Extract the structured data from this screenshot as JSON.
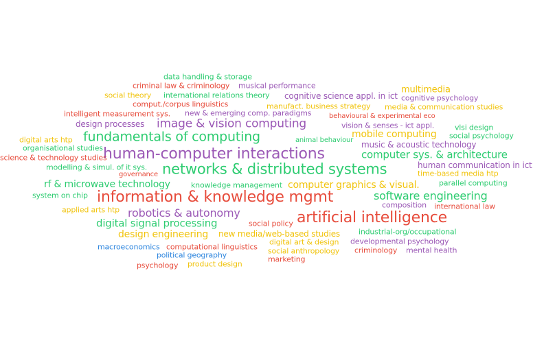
{
  "colors": {
    "green": "#2ecc71",
    "red": "#e74c3c",
    "purple": "#9b59b6",
    "yellow": "#f1c40f",
    "blue": "#2e86de"
  },
  "words": [
    {
      "text": "data handling & storage"
    },
    {
      "text": "criminal law & criminology"
    },
    {
      "text": "musical performance"
    },
    {
      "text": "social theory"
    },
    {
      "text": "international relations theory"
    },
    {
      "text": "cognitive science appl. in ict"
    },
    {
      "text": "multimedia"
    },
    {
      "text": "cognitive psychology"
    },
    {
      "text": "comput./corpus linguistics"
    },
    {
      "text": "manufact. business strategy"
    },
    {
      "text": "media & communication studies"
    },
    {
      "text": "intelligent measurement sys."
    },
    {
      "text": "new & emerging comp. paradigms"
    },
    {
      "text": "behavioural & experimental eco"
    },
    {
      "text": "design processes"
    },
    {
      "text": "image & vision computing"
    },
    {
      "text": "vision & senses - ict appl."
    },
    {
      "text": "vlsi design"
    },
    {
      "text": "fundamentals of computing"
    },
    {
      "text": "mobile computing"
    },
    {
      "text": "social psychology"
    },
    {
      "text": "digital arts htp"
    },
    {
      "text": "animal behaviour"
    },
    {
      "text": "music & acoustic technology"
    },
    {
      "text": "organisational studies"
    },
    {
      "text": "human-computer interactions"
    },
    {
      "text": "science & technology studies"
    },
    {
      "text": "computer sys. & architecture"
    },
    {
      "text": "modelling & simul. of it sys."
    },
    {
      "text": "networks & distributed systems"
    },
    {
      "text": "human communication in ict"
    },
    {
      "text": "governance"
    },
    {
      "text": "time-based media htp"
    },
    {
      "text": "rf & microwave technology"
    },
    {
      "text": "knowledge management"
    },
    {
      "text": "computer graphics & visual."
    },
    {
      "text": "parallel computing"
    },
    {
      "text": "system on chip"
    },
    {
      "text": "information & knowledge mgmt"
    },
    {
      "text": "software engineering"
    },
    {
      "text": "composition"
    },
    {
      "text": "applied arts htp"
    },
    {
      "text": "robotics & autonomy"
    },
    {
      "text": "international law"
    },
    {
      "text": "artificial intelligence"
    },
    {
      "text": "digital signal processing"
    },
    {
      "text": "social policy"
    },
    {
      "text": "design engineering"
    },
    {
      "text": "new media/web-based studies"
    },
    {
      "text": "industrial-org/occupational"
    },
    {
      "text": "digital art & design"
    },
    {
      "text": "developmental psychology"
    },
    {
      "text": "macroeconomics"
    },
    {
      "text": "computational linguistics"
    },
    {
      "text": "political geography"
    },
    {
      "text": "social anthropology"
    },
    {
      "text": "criminology"
    },
    {
      "text": "mental health"
    },
    {
      "text": "marketing"
    },
    {
      "text": "psychology"
    },
    {
      "text": "product design"
    }
  ]
}
